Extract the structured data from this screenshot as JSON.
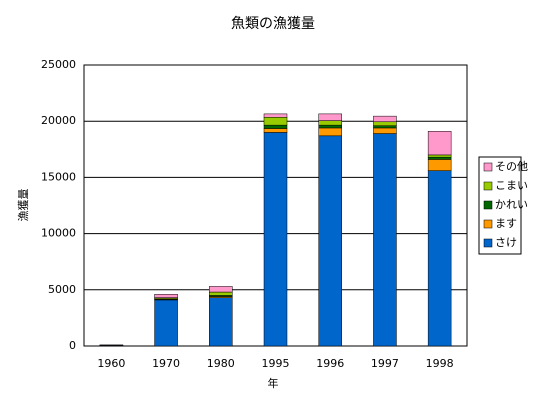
{
  "chart_data": {
    "type": "stacked_bar",
    "title": "魚類の漁獲量",
    "x_label": "年",
    "y_label": "漁獲量",
    "categories": [
      "1960",
      "1970",
      "1980",
      "1995",
      "1996",
      "1997",
      "1998"
    ],
    "series": [
      {
        "name": "さけ",
        "color": "#0066cc",
        "values": [
          50,
          4100,
          4300,
          19000,
          18700,
          18900,
          15600
        ]
      },
      {
        "name": "ます",
        "color": "#ff9900",
        "values": [
          10,
          50,
          100,
          350,
          700,
          500,
          1000
        ]
      },
      {
        "name": "かれい",
        "color": "#006600",
        "values": [
          10,
          50,
          100,
          300,
          250,
          200,
          200
        ]
      },
      {
        "name": "こまい",
        "color": "#99cc00",
        "values": [
          10,
          100,
          300,
          700,
          400,
          350,
          200
        ]
      },
      {
        "name": "その他",
        "color": "#ff99cc",
        "values": [
          20,
          300,
          500,
          300,
          600,
          500,
          2100
        ]
      }
    ],
    "ylim": [
      0,
      25000
    ],
    "yticks": [
      0,
      5000,
      10000,
      15000,
      20000,
      25000
    ],
    "grid": true
  }
}
